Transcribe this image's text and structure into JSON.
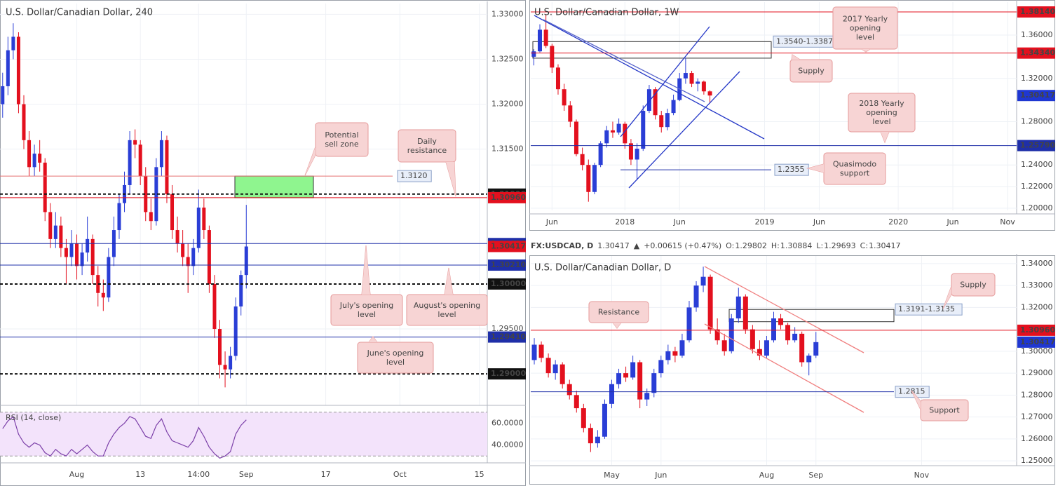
{
  "chart_data": [
    {
      "type": "candlestick",
      "title": "U.S. Dollar/Canadian Dollar, 240",
      "x": [
        0,
        1,
        2,
        3,
        4,
        5,
        6,
        7,
        8,
        9,
        10,
        11,
        12,
        13,
        14,
        15,
        16,
        17,
        18,
        19,
        20,
        21,
        22,
        23,
        24,
        25,
        26,
        27,
        28,
        29,
        30,
        31,
        32,
        33,
        34,
        35,
        36,
        37,
        38,
        39,
        40,
        41,
        42,
        43,
        44,
        45,
        46
      ],
      "open": [
        1.32,
        1.322,
        1.326,
        1.3275,
        1.32,
        1.316,
        1.313,
        1.3145,
        1.3135,
        1.308,
        1.305,
        1.3065,
        1.304,
        1.303,
        1.3045,
        1.302,
        1.3035,
        1.305,
        1.301,
        1.299,
        1.2985,
        1.303,
        1.306,
        1.309,
        1.311,
        1.316,
        1.3155,
        1.312,
        1.308,
        1.307,
        1.313,
        1.316,
        1.31,
        1.306,
        1.3045,
        1.303,
        1.302,
        1.304,
        1.3085,
        1.306,
        1.3,
        1.295,
        1.291,
        1.2905,
        1.292,
        1.2975,
        1.301
      ],
      "high": [
        1.3235,
        1.3275,
        1.329,
        1.328,
        1.321,
        1.317,
        1.3155,
        1.316,
        1.314,
        1.309,
        1.308,
        1.3075,
        1.305,
        1.306,
        1.3055,
        1.3045,
        1.3075,
        1.3055,
        1.302,
        1.3005,
        1.304,
        1.3075,
        1.31,
        1.3125,
        1.317,
        1.3172,
        1.316,
        1.313,
        1.3095,
        1.314,
        1.317,
        1.3165,
        1.311,
        1.3075,
        1.306,
        1.3045,
        1.305,
        1.3105,
        1.3095,
        1.3065,
        1.301,
        1.296,
        1.2925,
        1.293,
        1.2985,
        1.3015,
        1.3088
      ],
      "low": [
        1.3185,
        1.321,
        1.325,
        1.319,
        1.315,
        1.312,
        1.312,
        1.3125,
        1.307,
        1.304,
        1.304,
        1.303,
        1.3,
        1.302,
        1.3005,
        1.301,
        1.3025,
        1.3,
        1.2975,
        1.297,
        1.298,
        1.302,
        1.305,
        1.308,
        1.31,
        1.314,
        1.311,
        1.307,
        1.306,
        1.3065,
        1.312,
        1.309,
        1.305,
        1.3035,
        1.302,
        1.299,
        1.301,
        1.3035,
        1.305,
        1.299,
        1.294,
        1.2895,
        1.2885,
        1.2895,
        1.2915,
        1.2965,
        1.2995
      ],
      "close": [
        1.322,
        1.326,
        1.3275,
        1.32,
        1.316,
        1.313,
        1.3145,
        1.3135,
        1.308,
        1.305,
        1.3065,
        1.304,
        1.303,
        1.3045,
        1.302,
        1.3035,
        1.305,
        1.301,
        1.299,
        1.2985,
        1.303,
        1.306,
        1.309,
        1.311,
        1.316,
        1.3155,
        1.312,
        1.308,
        1.307,
        1.313,
        1.316,
        1.31,
        1.306,
        1.3045,
        1.303,
        1.302,
        1.304,
        1.3085,
        1.306,
        1.3,
        1.295,
        1.291,
        1.2905,
        1.292,
        1.2975,
        1.301,
        1.30417
      ],
      "up_color": "#2a3ed6",
      "down_color": "#e3101e",
      "xlim": [
        -0.5,
        91.5
      ],
      "xticks": [
        {
          "value": 14,
          "label": "Aug"
        },
        {
          "value": 26,
          "label": "13"
        },
        {
          "value": 37,
          "label": "14:00"
        },
        {
          "value": 46,
          "label": "Sep"
        },
        {
          "value": 61,
          "label": "17"
        },
        {
          "value": 75,
          "label": "Oct"
        },
        {
          "value": 90,
          "label": "15"
        }
      ],
      "ylim": [
        1.2865,
        1.3312
      ],
      "yticks": [
        {
          "value": 1.33,
          "label": "1.33000"
        },
        {
          "value": 1.325,
          "label": "1.32500"
        },
        {
          "value": 1.32,
          "label": "1.32000"
        },
        {
          "value": 1.315,
          "label": "1.31500"
        },
        {
          "value": 1.295,
          "label": "1.29500"
        }
      ],
      "grid": true,
      "levels": [
        {
          "value": 1.312,
          "label": "1.3120",
          "color": "#e57373",
          "style": "solid",
          "tag": false
        },
        {
          "value": 1.31,
          "label": "1.31000",
          "color": "#111111",
          "style": "dashed",
          "tag": true
        },
        {
          "value": 1.3096,
          "label": "1.30960",
          "color": "#e3101e",
          "style": "solid",
          "tag": true
        },
        {
          "value": 1.3045,
          "label": "1.30450",
          "color": "#1f2fa8",
          "style": "solid",
          "tag": true
        },
        {
          "value": 1.30417,
          "label": "1.30417",
          "color": "#e3101e",
          "style": "none",
          "tag": true
        },
        {
          "value": 1.3021,
          "label": "1.30210",
          "color": "#1f2fa8",
          "style": "solid",
          "tag": true
        },
        {
          "value": 1.3,
          "label": "1.30000",
          "color": "#111111",
          "style": "dashed",
          "tag": true
        },
        {
          "value": 1.2941,
          "label": "1.29410",
          "color": "#1f2fa8",
          "style": "solid",
          "tag": true
        },
        {
          "value": 1.29,
          "label": "1.29000",
          "color": "#111111",
          "style": "dashed",
          "tag": true
        }
      ],
      "zones": [],
      "annotations": [
        {
          "lines": [
            "Potential",
            "sell zone"
          ]
        },
        {
          "lines": [
            "Daily",
            "resistance"
          ]
        },
        {
          "lines": [
            "July's opening",
            "level"
          ]
        },
        {
          "lines": [
            "August's opening",
            "level"
          ]
        },
        {
          "lines": [
            "June's opening",
            "level"
          ]
        }
      ],
      "rsi": {
        "label": "RSI (14, close)",
        "color": "#7b3fa8",
        "background": "#f3e3fb",
        "values": [
          55,
          62,
          66,
          50,
          42,
          38,
          42,
          40,
          33,
          30,
          36,
          32,
          30,
          36,
          32,
          36,
          40,
          34,
          30,
          30,
          42,
          50,
          56,
          60,
          66,
          64,
          56,
          48,
          46,
          58,
          64,
          52,
          44,
          42,
          40,
          38,
          44,
          56,
          48,
          38,
          32,
          28,
          30,
          34,
          50,
          58,
          63
        ],
        "ylim": [
          25,
          75
        ],
        "yticks": [
          {
            "value": 60,
            "label": "60.0000"
          },
          {
            "value": 40,
            "label": "40.0000"
          }
        ],
        "bands": [
          30,
          70
        ]
      }
    },
    {
      "type": "candlestick",
      "title": "U.S. Dollar/Canadian Dollar, 1W",
      "x": [
        0,
        1,
        2,
        3,
        4,
        5,
        6,
        7,
        8,
        9,
        10,
        11,
        12,
        13,
        14,
        15,
        16,
        17,
        18,
        19,
        20,
        21,
        22,
        23,
        24,
        25,
        26,
        27,
        28,
        29
      ],
      "open": [
        1.34,
        1.345,
        1.365,
        1.35,
        1.33,
        1.31,
        1.295,
        1.28,
        1.25,
        1.24,
        1.215,
        1.24,
        1.26,
        1.272,
        1.27,
        1.278,
        1.26,
        1.245,
        1.255,
        1.29,
        1.31,
        1.286,
        1.275,
        1.288,
        1.3,
        1.32,
        1.325,
        1.315,
        1.317,
        1.308
      ],
      "high": [
        1.347,
        1.37,
        1.379,
        1.352,
        1.333,
        1.315,
        1.299,
        1.282,
        1.256,
        1.245,
        1.242,
        1.262,
        1.276,
        1.28,
        1.283,
        1.28,
        1.264,
        1.26,
        1.295,
        1.314,
        1.312,
        1.29,
        1.292,
        1.305,
        1.325,
        1.339,
        1.327,
        1.32,
        1.318,
        1.309
      ],
      "low": [
        1.332,
        1.344,
        1.348,
        1.325,
        1.305,
        1.29,
        1.275,
        1.248,
        1.235,
        1.206,
        1.213,
        1.238,
        1.256,
        1.265,
        1.268,
        1.255,
        1.24,
        1.226,
        1.253,
        1.288,
        1.282,
        1.27,
        1.272,
        1.286,
        1.299,
        1.315,
        1.312,
        1.308,
        1.305,
        1.297
      ],
      "close": [
        1.345,
        1.365,
        1.35,
        1.33,
        1.31,
        1.295,
        1.28,
        1.25,
        1.24,
        1.215,
        1.24,
        1.26,
        1.272,
        1.27,
        1.278,
        1.26,
        1.245,
        1.255,
        1.29,
        1.31,
        1.286,
        1.275,
        1.288,
        1.3,
        1.32,
        1.325,
        1.315,
        1.317,
        1.308,
        1.30417
      ],
      "up_color": "#2a3ed6",
      "down_color": "#e3101e",
      "xlim": [
        -0.5,
        79.5
      ],
      "xticks": [
        {
          "value": 3,
          "label": "Jun"
        },
        {
          "value": 15,
          "label": "2018"
        },
        {
          "value": 24,
          "label": "Jun"
        },
        {
          "value": 38,
          "label": "2019"
        },
        {
          "value": 47,
          "label": "Jun"
        },
        {
          "value": 60,
          "label": "2020"
        },
        {
          "value": 69,
          "label": "Jun"
        },
        {
          "value": 78,
          "label": "Nov"
        }
      ],
      "ylim": [
        1.198,
        1.3905
      ],
      "yticks": [
        {
          "value": 1.36,
          "label": "1.36000"
        },
        {
          "value": 1.32,
          "label": "1.32000"
        },
        {
          "value": 1.28,
          "label": "1.28000"
        },
        {
          "value": 1.24,
          "label": "1.24000"
        },
        {
          "value": 1.22,
          "label": "1.22000"
        },
        {
          "value": 1.2,
          "label": "1.20000"
        }
      ],
      "grid": true,
      "levels": [
        {
          "value": 1.3814,
          "label": "1.38140",
          "color": "#e3101e",
          "style": "solid",
          "tag": true
        },
        {
          "value": 1.3434,
          "label": "1.34340",
          "color": "#e3101e",
          "style": "solid",
          "tag": true
        },
        {
          "value": 1.30417,
          "label": "1.30417",
          "color": "#1f37d1",
          "style": "none",
          "tag": true
        },
        {
          "value": 1.2579,
          "label": "1.25790",
          "color": "#1f2fa8",
          "style": "solid",
          "tag": true
        },
        {
          "value": 1.2355,
          "label": "1.2355",
          "color": "#1f2fa8",
          "style": "solid",
          "tag": false
        }
      ],
      "zones": [
        {
          "label": "1.3540-1.3387",
          "from": 1.3387,
          "to": 1.354
        }
      ],
      "annotations": [
        {
          "lines": [
            "2017 Yearly",
            "opening",
            "level"
          ]
        },
        {
          "lines": [
            "Supply"
          ]
        },
        {
          "lines": [
            "2018 Yearly",
            "opening",
            "level"
          ]
        },
        {
          "lines": [
            "Quasimodo",
            "support"
          ]
        }
      ]
    },
    {
      "type": "candlestick",
      "title": "U.S. Dollar/Canadian Dollar, D",
      "header": {
        "symbol": "FX:USDCAD, D",
        "last": "1.30417",
        "arrow": "▲",
        "change": "+0.00615 (+0.47%)",
        "o_label": "O:",
        "o": "1.29802",
        "h_label": "H:",
        "h": "1.30884",
        "l_label": "L:",
        "l": "1.29693",
        "c_label": "C:",
        "c": "1.30417"
      },
      "x": [
        0,
        1,
        2,
        3,
        4,
        5,
        6,
        7,
        8,
        9,
        10,
        11,
        12,
        13,
        14,
        15,
        16,
        17,
        18,
        19,
        20,
        21,
        22,
        23,
        24,
        25,
        26,
        27,
        28,
        29,
        30,
        31,
        32,
        33,
        34,
        35,
        36,
        37,
        38,
        39,
        40
      ],
      "open": [
        1.296,
        1.303,
        1.297,
        1.29,
        1.294,
        1.285,
        1.28,
        1.274,
        1.265,
        1.258,
        1.261,
        1.276,
        1.285,
        1.29,
        1.288,
        1.295,
        1.278,
        1.281,
        1.29,
        1.296,
        1.3,
        1.298,
        1.305,
        1.32,
        1.33,
        1.334,
        1.31,
        1.305,
        1.3,
        1.315,
        1.325,
        1.31,
        1.301,
        1.298,
        1.305,
        1.315,
        1.312,
        1.305,
        1.308,
        1.295,
        1.29802
      ],
      "high": [
        1.306,
        1.3045,
        1.299,
        1.296,
        1.295,
        1.287,
        1.282,
        1.276,
        1.267,
        1.264,
        1.278,
        1.287,
        1.292,
        1.293,
        1.298,
        1.296,
        1.283,
        1.292,
        1.298,
        1.303,
        1.302,
        1.308,
        1.323,
        1.332,
        1.3386,
        1.335,
        1.315,
        1.308,
        1.317,
        1.329,
        1.326,
        1.312,
        1.305,
        1.307,
        1.318,
        1.317,
        1.313,
        1.311,
        1.309,
        1.299,
        1.30884
      ],
      "low": [
        1.294,
        1.295,
        1.288,
        1.287,
        1.283,
        1.278,
        1.272,
        1.263,
        1.254,
        1.256,
        1.26,
        1.274,
        1.283,
        1.286,
        1.287,
        1.274,
        1.275,
        1.279,
        1.288,
        1.294,
        1.295,
        1.297,
        1.304,
        1.318,
        1.327,
        1.308,
        1.303,
        1.298,
        1.299,
        1.313,
        1.308,
        1.299,
        1.296,
        1.297,
        1.304,
        1.31,
        1.303,
        1.304,
        1.293,
        1.289,
        1.29693
      ],
      "close": [
        1.303,
        1.297,
        1.29,
        1.294,
        1.285,
        1.28,
        1.274,
        1.265,
        1.258,
        1.261,
        1.276,
        1.285,
        1.29,
        1.288,
        1.295,
        1.278,
        1.281,
        1.29,
        1.296,
        1.3,
        1.298,
        1.305,
        1.32,
        1.33,
        1.334,
        1.31,
        1.305,
        1.3,
        1.315,
        1.325,
        1.31,
        1.301,
        1.298,
        1.305,
        1.315,
        1.312,
        1.305,
        1.308,
        1.295,
        1.298,
        1.30417
      ],
      "up_color": "#2a3ed6",
      "down_color": "#e3101e",
      "xlim": [
        -0.5,
        68.5
      ],
      "xticks": [
        {
          "value": 11,
          "label": "May"
        },
        {
          "value": 18,
          "label": "Jun"
        },
        {
          "value": 33,
          "label": "Aug"
        },
        {
          "value": 40,
          "label": "Sep"
        },
        {
          "value": 55,
          "label": "Nov"
        }
      ],
      "ylim": [
        1.2481,
        1.3435
      ],
      "yticks": [
        {
          "value": 1.34,
          "label": "1.34000"
        },
        {
          "value": 1.33,
          "label": "1.33000"
        },
        {
          "value": 1.32,
          "label": "1.32000"
        },
        {
          "value": 1.3,
          "label": "1.30000"
        },
        {
          "value": 1.29,
          "label": "1.29000"
        },
        {
          "value": 1.28,
          "label": "1.28000"
        },
        {
          "value": 1.27,
          "label": "1.27000"
        },
        {
          "value": 1.26,
          "label": "1.26000"
        },
        {
          "value": 1.25,
          "label": "1.25000"
        }
      ],
      "grid": true,
      "levels": [
        {
          "value": 1.3096,
          "label": "1.30960",
          "color": "#e3101e",
          "style": "solid",
          "tag": true
        },
        {
          "value": 1.30417,
          "label": "1.30417",
          "color": "#1f37d1",
          "style": "none",
          "tag": true
        },
        {
          "value": 1.2815,
          "label": "1.2815",
          "color": "#1f2fa8",
          "style": "solid",
          "tag": false
        }
      ],
      "zones": [
        {
          "label": "1.3191-1.3135",
          "from": 1.3135,
          "to": 1.3191
        }
      ],
      "annotations": [
        {
          "lines": [
            "Resistance"
          ]
        },
        {
          "lines": [
            "Supply"
          ]
        },
        {
          "lines": [
            "Support"
          ]
        }
      ]
    }
  ]
}
